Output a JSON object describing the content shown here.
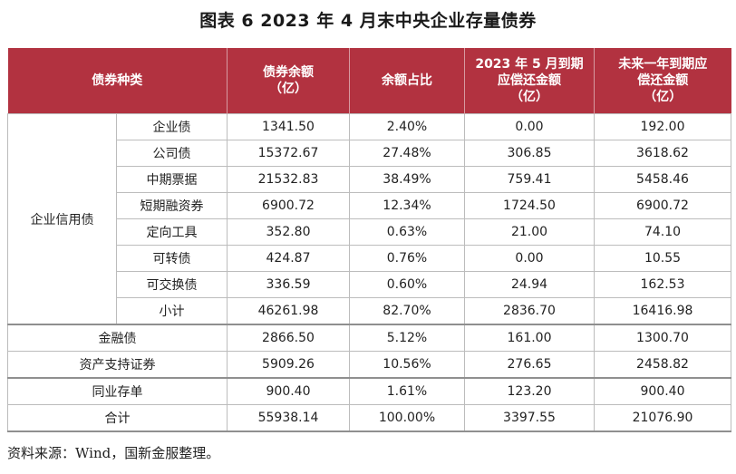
{
  "title": "图表 6  2023 年 4 月末中央企业存量债券",
  "headers": {
    "type": "债券种类",
    "balance": "债券余额\n（亿）",
    "share": "余额占比",
    "may": "2023 年 5 月到期\n应偿还金额\n（亿）",
    "year": "未来一年到期应\n偿还金额\n（亿）"
  },
  "group_label": "企业信用债",
  "credit_rows": [
    {
      "name": "企业债",
      "balance": "1341.50",
      "share": "2.40%",
      "may": "0.00",
      "year": "192.00"
    },
    {
      "name": "公司债",
      "balance": "15372.67",
      "share": "27.48%",
      "may": "306.85",
      "year": "3618.62"
    },
    {
      "name": "中期票据",
      "balance": "21532.83",
      "share": "38.49%",
      "may": "759.41",
      "year": "5458.46"
    },
    {
      "name": "短期融资券",
      "balance": "6900.72",
      "share": "12.34%",
      "may": "1724.50",
      "year": "6900.72"
    },
    {
      "name": "定向工具",
      "balance": "352.80",
      "share": "0.63%",
      "may": "21.00",
      "year": "74.10"
    },
    {
      "name": "可转债",
      "balance": "424.87",
      "share": "0.76%",
      "may": "0.00",
      "year": "10.55"
    },
    {
      "name": "可交换债",
      "balance": "336.59",
      "share": "0.60%",
      "may": "24.94",
      "year": "162.53"
    },
    {
      "name": "小计",
      "balance": "46261.98",
      "share": "82.70%",
      "may": "2836.70",
      "year": "16416.98"
    }
  ],
  "other_rows": [
    {
      "name": "金融债",
      "balance": "2866.50",
      "share": "5.12%",
      "may": "161.00",
      "year": "1300.70"
    },
    {
      "name": "资产支持证券",
      "balance": "5909.26",
      "share": "10.56%",
      "may": "276.65",
      "year": "2458.82"
    },
    {
      "name": "同业存单",
      "balance": "900.40",
      "share": "1.61%",
      "may": "123.20",
      "year": "900.40"
    },
    {
      "name": "合计",
      "balance": "55938.14",
      "share": "100.00%",
      "may": "3397.55",
      "year": "21076.90"
    }
  ],
  "source": "资料来源：Wind，国新金服整理。"
}
